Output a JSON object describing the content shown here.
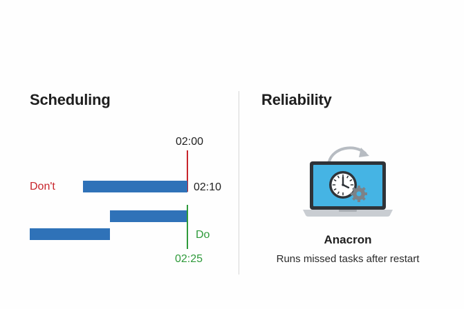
{
  "scheduling": {
    "title": "Scheduling",
    "times": {
      "t1": "02:00",
      "t2": "02:10",
      "t3": "02:25"
    },
    "dont_label": "Don't",
    "do_label": "Do",
    "colors": {
      "bar": "#2f72b8",
      "dont": "#c8242b",
      "do": "#2e9a3a"
    }
  },
  "reliability": {
    "title": "Reliability",
    "illustration_icons": [
      "laptop-icon",
      "clock-icon",
      "gear-icon",
      "restart-arrow-icon"
    ],
    "name": "Anacron",
    "description": "Runs missed tasks after restart"
  }
}
